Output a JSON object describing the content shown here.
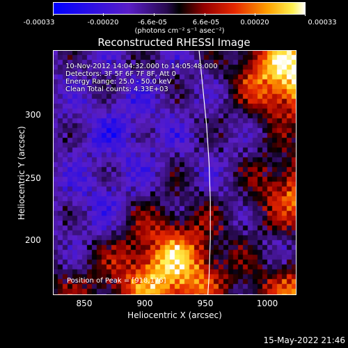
{
  "colorbar": {
    "ticks": [
      "-0.00033",
      "-0.00020",
      "-6.6e-05",
      "6.6e-05",
      "0.00020",
      "0.00033"
    ],
    "units": "(photons cm⁻² s⁻¹ asec⁻²)"
  },
  "title": "Reconstructed RHESSI Image",
  "info_lines": [
    "10-Nov-2012 14:04:32.000 to 14:05:48.000",
    "Detectors: 3F 5F 6F 7F 8F, Att 0",
    "Energy Range: 25.0 - 50.0 keV",
    "Clean     Total counts: 4.33E+03"
  ],
  "peak_label": "Position of Peak = [918,176]",
  "chart_data": {
    "type": "heatmap",
    "title": "Reconstructed RHESSI Image",
    "xlabel": "Heliocentric X (arcsec)",
    "ylabel": "Heliocentric Y (arcsec)",
    "xlim": [
      825,
      1020
    ],
    "ylim": [
      155,
      350
    ],
    "x_ticks": [
      850,
      900,
      950,
      1000
    ],
    "y_ticks": [
      200,
      250,
      300
    ],
    "value_range": [
      -0.00033,
      0.00033
    ],
    "peak_position": [
      918,
      176
    ],
    "limb_curve": [
      [
        942,
        350
      ],
      [
        945,
        320
      ],
      [
        948,
        290
      ],
      [
        950,
        260
      ],
      [
        951,
        230
      ],
      [
        951,
        200
      ],
      [
        950,
        170
      ],
      [
        949,
        155
      ]
    ]
  },
  "footer_timestamp": "15-May-2022 21:46"
}
